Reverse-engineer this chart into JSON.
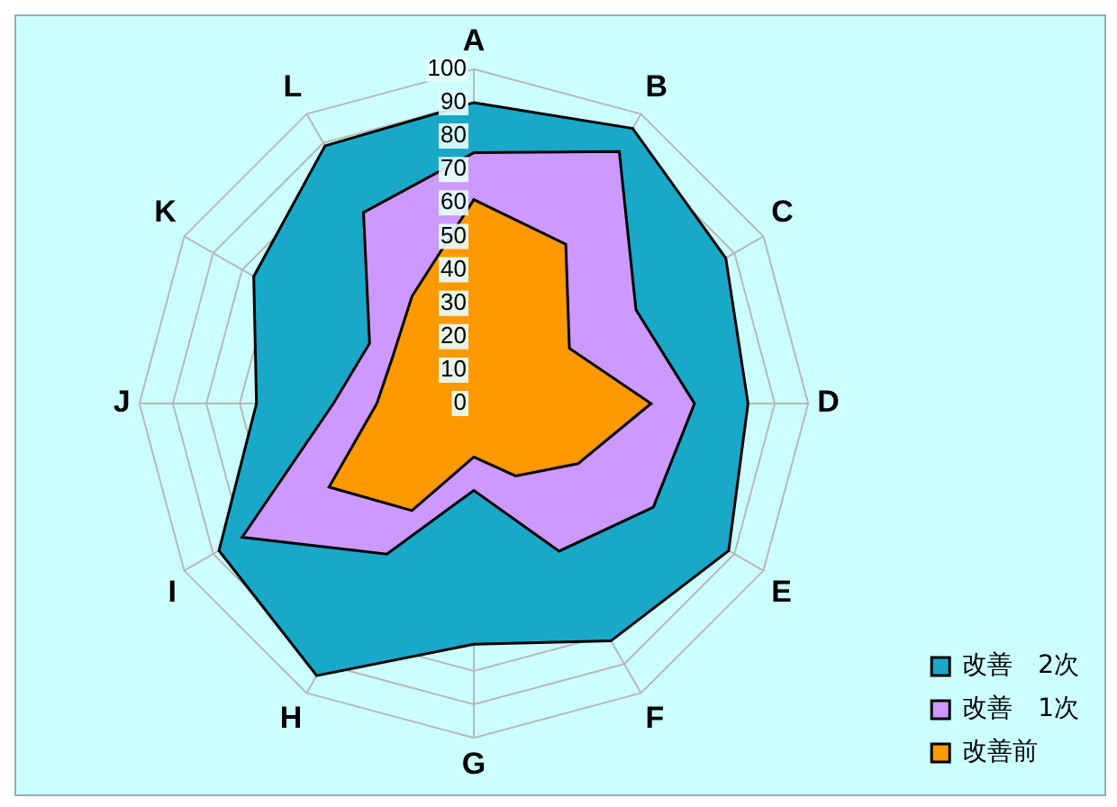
{
  "chart_data": {
    "type": "radar",
    "categories": [
      "A",
      "B",
      "C",
      "D",
      "E",
      "F",
      "G",
      "H",
      "I",
      "J",
      "K",
      "L"
    ],
    "series": [
      {
        "name": "改善　2次",
        "color": "#1aa8c8",
        "values": [
          90,
          95,
          87,
          82,
          88,
          82,
          72,
          94,
          88,
          65,
          76,
          89
        ]
      },
      {
        "name": "改善　1次",
        "color": "#cc99ff",
        "values": [
          75,
          87,
          56,
          66,
          62,
          51,
          26,
          52,
          80,
          42,
          36,
          66
        ]
      },
      {
        "name": "改善前",
        "color": "#ff9900",
        "values": [
          61,
          55,
          33,
          53,
          36,
          25,
          16,
          37,
          50,
          29,
          28,
          37
        ]
      }
    ],
    "ylim": [
      0,
      100
    ],
    "yticks": [
      0,
      10,
      20,
      30,
      40,
      50,
      60,
      70,
      80,
      90,
      100
    ],
    "grid": true,
    "legend": "bottom right"
  }
}
